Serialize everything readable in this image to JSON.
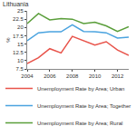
{
  "chart_data": {
    "type": "line",
    "title": "Lithuania",
    "y_label": "%",
    "x": [
      2004,
      2005,
      2006,
      2007,
      2008,
      2009,
      2010,
      2011,
      2012,
      2013
    ],
    "series": [
      {
        "name": "Unemployment Rate by Area; Urban",
        "color": "#e8534a",
        "values": [
          9.1,
          10.9,
          13.6,
          12.3,
          17.3,
          16.1,
          14.7,
          15.7,
          13.2,
          11.6
        ]
      },
      {
        "name": "Unemployment Rate by Area; Together",
        "color": "#4aa3df",
        "values": [
          16.0,
          18.4,
          18.7,
          18.7,
          20.8,
          18.8,
          18.7,
          18.4,
          16.8,
          17.1
        ]
      },
      {
        "name": "Unemployment Rate by Area; Rural",
        "color": "#5a9e3a",
        "values": [
          21.2,
          24.2,
          22.3,
          22.7,
          22.5,
          21.2,
          21.6,
          20.5,
          18.8,
          20.2
        ]
      }
    ],
    "xlim": [
      2004,
      2013
    ],
    "xticks": [
      2004,
      2006,
      2008,
      2010,
      2012
    ],
    "ylim": [
      7.5,
      25
    ],
    "yticks": [
      7.5,
      10,
      12.5,
      15,
      17.5,
      20,
      22.5,
      25
    ],
    "grid": false,
    "legend": "bottom"
  }
}
